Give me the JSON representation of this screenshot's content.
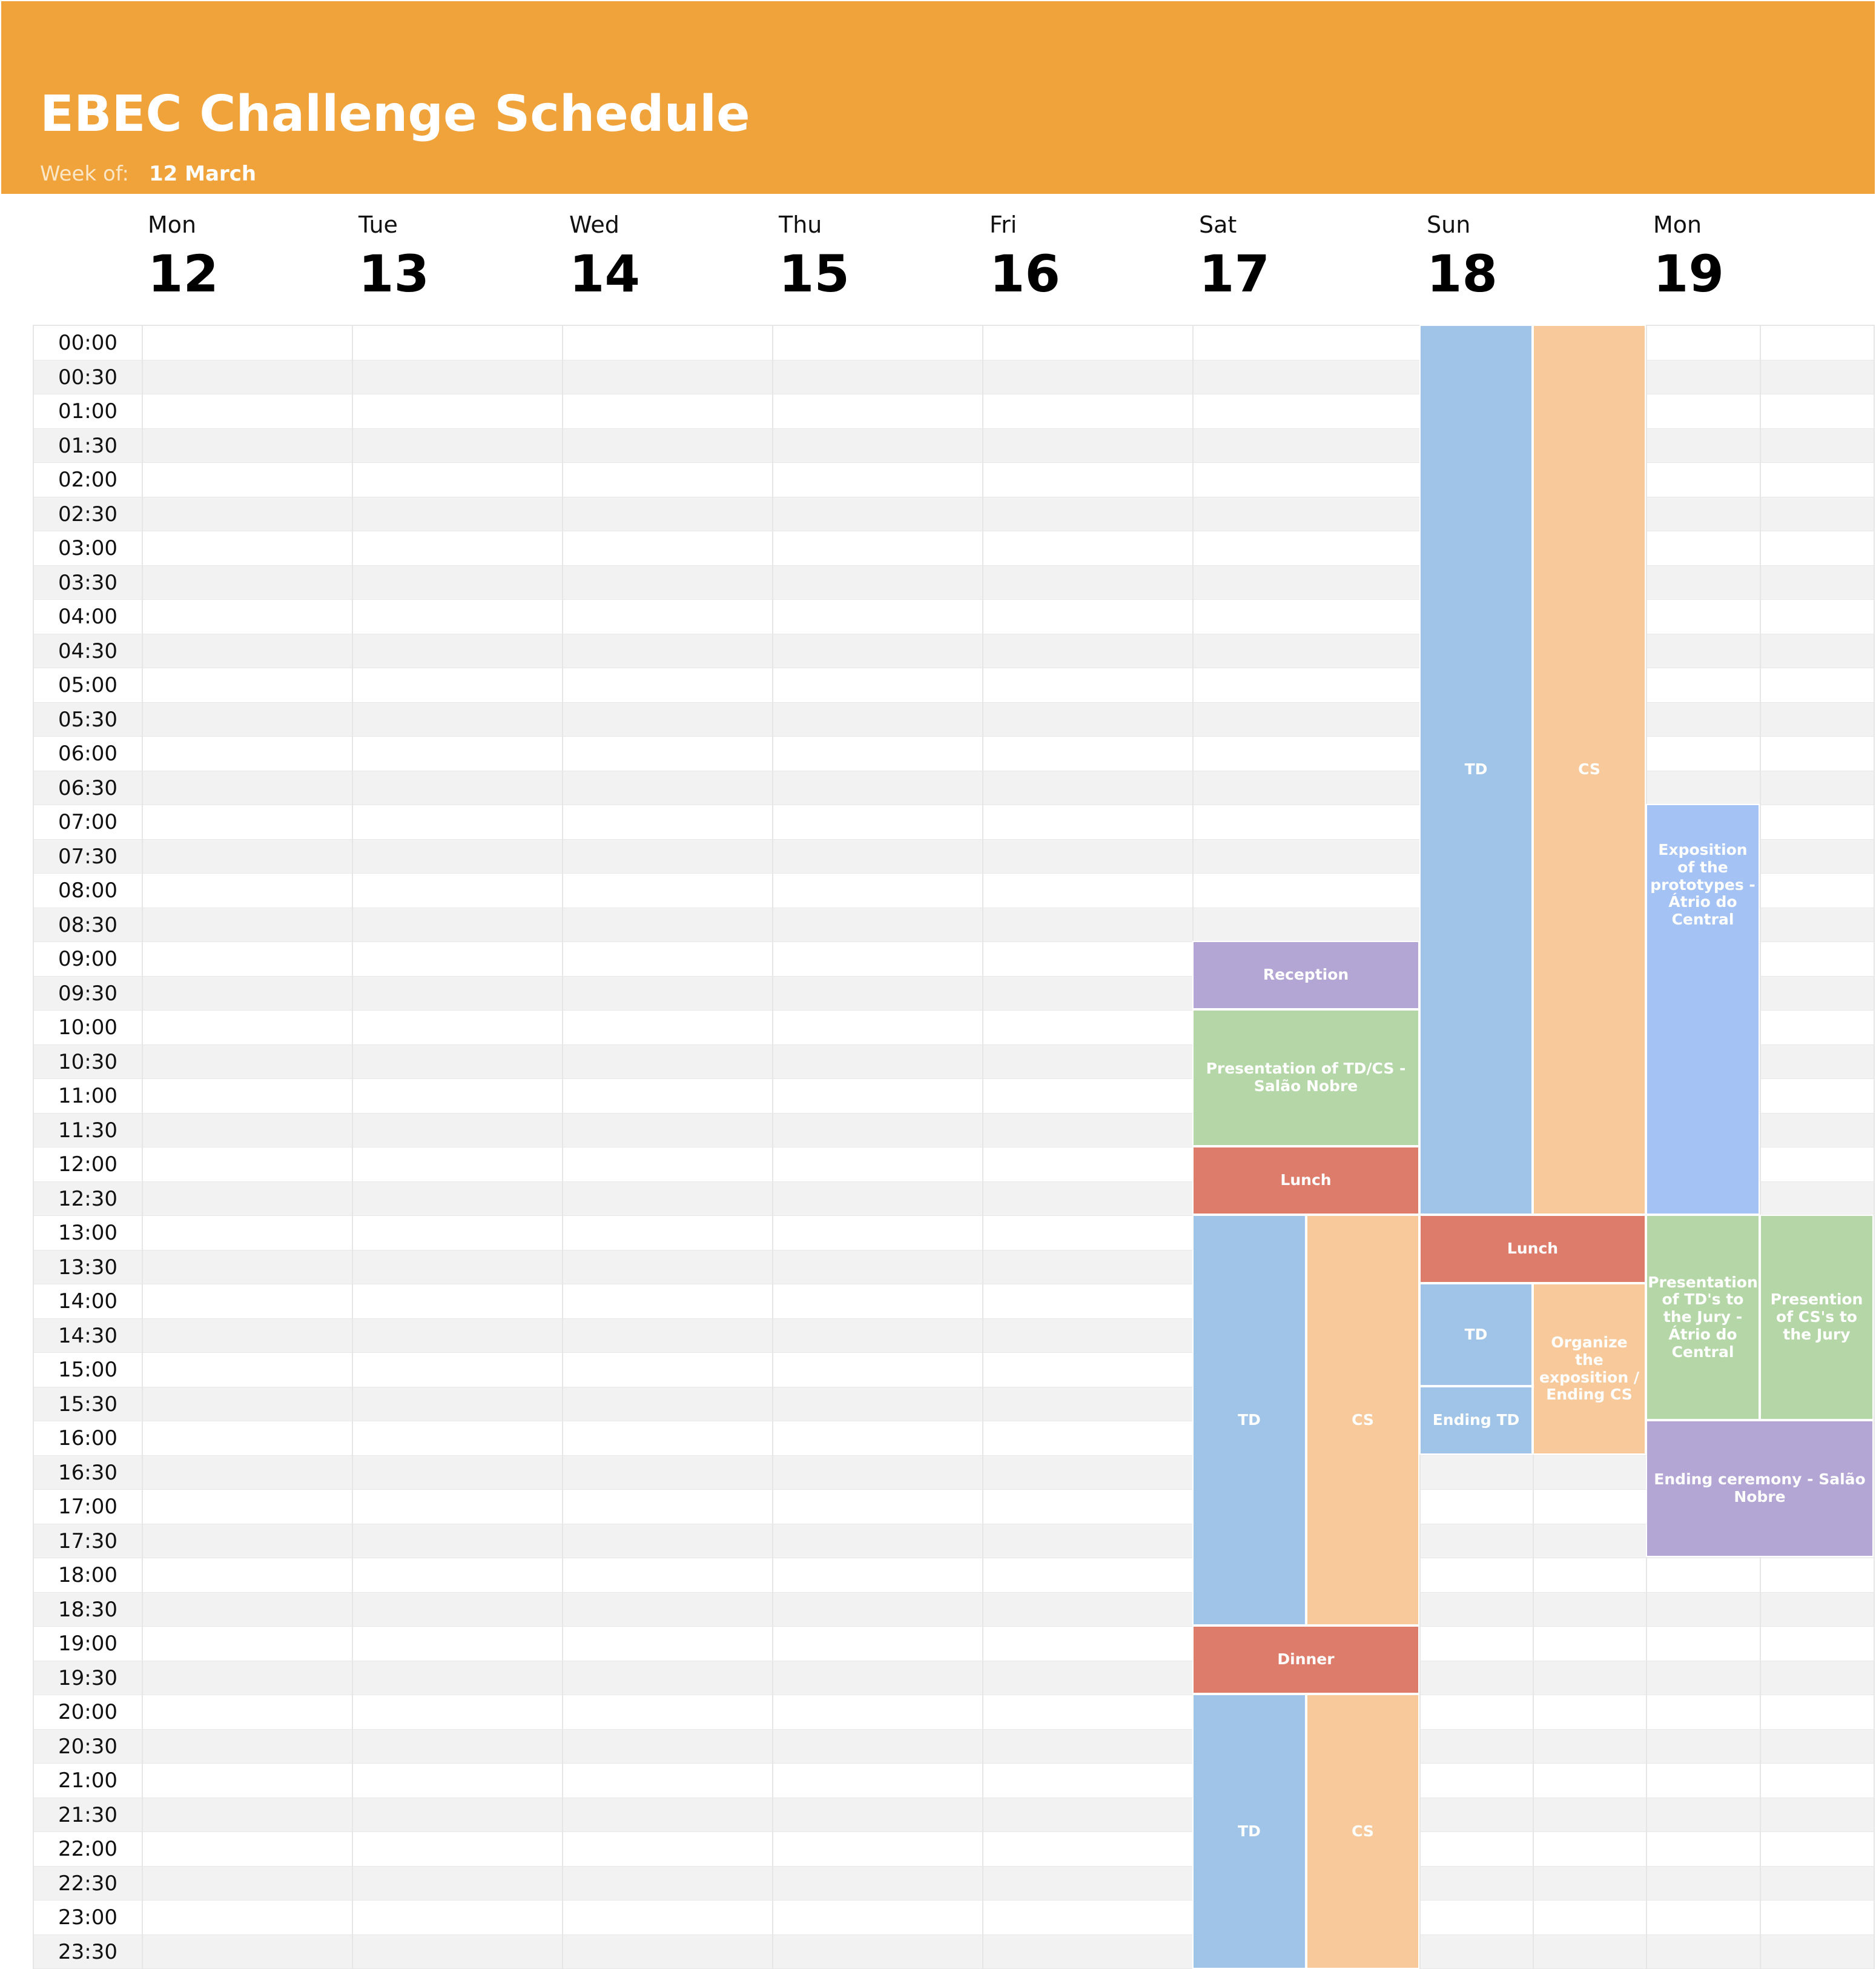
{
  "header": {
    "title": "EBEC Challenge Schedule",
    "week_label": "Week of:",
    "week_value": "12 March"
  },
  "days": [
    {
      "name": "Mon",
      "num": "12"
    },
    {
      "name": "Tue",
      "num": "13"
    },
    {
      "name": "Wed",
      "num": "14"
    },
    {
      "name": "Thu",
      "num": "15"
    },
    {
      "name": "Fri",
      "num": "16"
    },
    {
      "name": "Sat",
      "num": "17"
    },
    {
      "name": "Sun",
      "num": "18"
    },
    {
      "name": "Mon",
      "num": "19"
    }
  ],
  "times": [
    "00:00",
    "00:30",
    "01:00",
    "01:30",
    "02:00",
    "02:30",
    "03:00",
    "03:30",
    "04:00",
    "04:30",
    "05:00",
    "05:30",
    "06:00",
    "06:30",
    "07:00",
    "07:30",
    "08:00",
    "08:30",
    "09:00",
    "09:30",
    "10:00",
    "10:30",
    "11:00",
    "11:30",
    "12:00",
    "12:30",
    "13:00",
    "13:30",
    "14:00",
    "14:30",
    "15:00",
    "15:30",
    "16:00",
    "16:30",
    "17:00",
    "17:30",
    "18:00",
    "18:30",
    "19:00",
    "19:30",
    "20:00",
    "20:30",
    "21:00",
    "21:30",
    "22:00",
    "22:30",
    "23:00",
    "23:30"
  ],
  "events": {
    "sat_reception": "Reception",
    "sat_presentation": "Presentation of TD/CS - Salão Nobre",
    "sat_lunch": "Lunch",
    "sat_td_1": "TD",
    "sat_cs_1": "CS",
    "sat_dinner": "Dinner",
    "sat_td_2": "TD",
    "sat_cs_2": "CS",
    "sun_td_1": "TD",
    "sun_cs_1": "CS",
    "sun_lunch": "Lunch",
    "sun_td_2": "TD",
    "sun_ending_td": "Ending TD",
    "sun_organize": "Organize the exposition / Ending CS",
    "mon_exposition": "Exposition of the prototypes - Átrio do Central",
    "mon_pres_td": "Presentation of TD's to the Jury - Átrio do Central",
    "mon_pres_cs": "Presention of CS's to the Jury",
    "mon_ending": "Ending ceremony - Salão Nobre"
  },
  "colors": {
    "header": "#efa33a",
    "td": "#a0c4e8",
    "cs": "#f7c99b",
    "meal": "#de7c6b",
    "reception": "#b3a6d4",
    "presentation": "#b5d7a8",
    "exposition": "#a4c2f4"
  }
}
